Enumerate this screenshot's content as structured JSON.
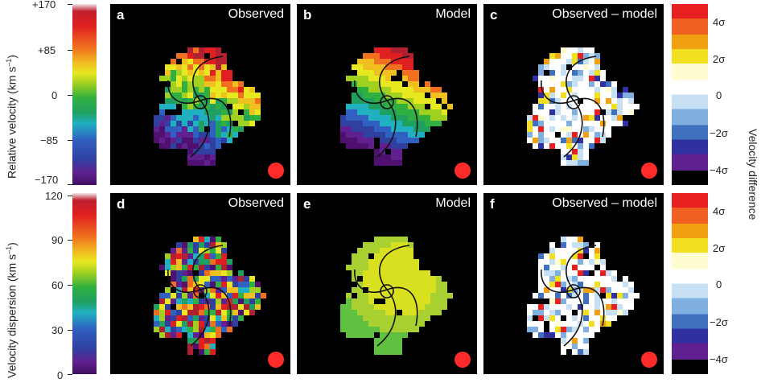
{
  "figure": {
    "velocity_axis": {
      "label_main": "Relative velocity (km s",
      "label_sup": "–1",
      "label_end": ")",
      "ticks": [
        "+170",
        "+85",
        "0",
        "−85",
        "−170"
      ]
    },
    "dispersion_axis": {
      "label_main": "Velocity dispersion (km s",
      "label_sup": "–1",
      "label_end": ")",
      "ticks": [
        "120",
        "90",
        "60",
        "30",
        "0"
      ]
    },
    "difference_axis": {
      "label": "Velocity difference",
      "ticks_top": [
        "4σ",
        "2σ",
        "0",
        "−2σ",
        "−4σ"
      ],
      "ticks_bottom": [
        "4σ",
        "2σ",
        "0",
        "−2σ",
        "−4σ"
      ]
    },
    "panels": [
      {
        "letter": "a",
        "title": "Observed"
      },
      {
        "letter": "b",
        "title": "Model"
      },
      {
        "letter": "c",
        "title": "Observed – model"
      },
      {
        "letter": "d",
        "title": "Observed"
      },
      {
        "letter": "e",
        "title": "Model"
      },
      {
        "letter": "f",
        "title": "Observed – model"
      }
    ],
    "colors": {
      "beam": "#ff2a2a",
      "rainbow": [
        "#b02030",
        "#e02020",
        "#f07020",
        "#f0c020",
        "#e8e820",
        "#a0d020",
        "#30b040",
        "#20a060",
        "#20b0c0",
        "#3060c0",
        "#3040a0",
        "#602090",
        "#501070"
      ],
      "difference": [
        "#e82020",
        "#f06020",
        "#f0a010",
        "#f0e020",
        "#fffcd0",
        "#ffffff",
        "#c8e0f4",
        "#80b0e0",
        "#4070c0",
        "#3030a0",
        "#602090",
        "#000000"
      ]
    }
  }
}
